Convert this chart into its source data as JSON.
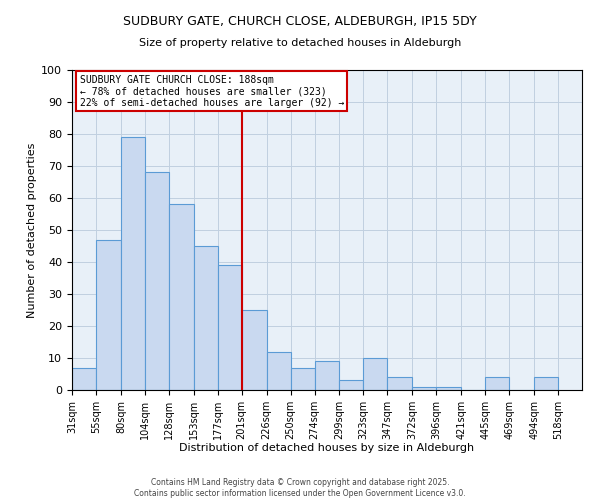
{
  "title": "SUDBURY GATE, CHURCH CLOSE, ALDEBURGH, IP15 5DY",
  "subtitle": "Size of property relative to detached houses in Aldeburgh",
  "xlabel": "Distribution of detached houses by size in Aldeburgh",
  "ylabel": "Number of detached properties",
  "bar_color": "#c9d9f0",
  "bar_edge_color": "#5b9bd5",
  "background_color": "#ffffff",
  "plot_bg_color": "#e8f0f8",
  "grid_color": "#c0cfe0",
  "vline_color": "#cc0000",
  "annotation_line1": "SUDBURY GATE CHURCH CLOSE: 188sqm",
  "annotation_line2": "← 78% of detached houses are smaller (323)",
  "annotation_line3": "22% of semi-detached houses are larger (92) →",
  "annotation_box_color": "#cc0000",
  "footer_line1": "Contains HM Land Registry data © Crown copyright and database right 2025.",
  "footer_line2": "Contains public sector information licensed under the Open Government Licence v3.0.",
  "bins": [
    31,
    55,
    80,
    104,
    128,
    153,
    177,
    201,
    226,
    250,
    274,
    299,
    323,
    347,
    372,
    396,
    421,
    445,
    469,
    494,
    518
  ],
  "bin_labels": [
    "31sqm",
    "55sqm",
    "80sqm",
    "104sqm",
    "128sqm",
    "153sqm",
    "177sqm",
    "201sqm",
    "226sqm",
    "250sqm",
    "274sqm",
    "299sqm",
    "323sqm",
    "347sqm",
    "372sqm",
    "396sqm",
    "421sqm",
    "445sqm",
    "469sqm",
    "494sqm",
    "518sqm"
  ],
  "counts": [
    7,
    47,
    79,
    68,
    58,
    45,
    39,
    25,
    12,
    7,
    9,
    3,
    10,
    4,
    1,
    1,
    0,
    4,
    0,
    4
  ],
  "ylim": [
    0,
    100
  ],
  "yticks": [
    0,
    10,
    20,
    30,
    40,
    50,
    60,
    70,
    80,
    90,
    100
  ],
  "vline_bar_index": 6,
  "figsize": [
    6.0,
    5.0
  ],
  "dpi": 100
}
